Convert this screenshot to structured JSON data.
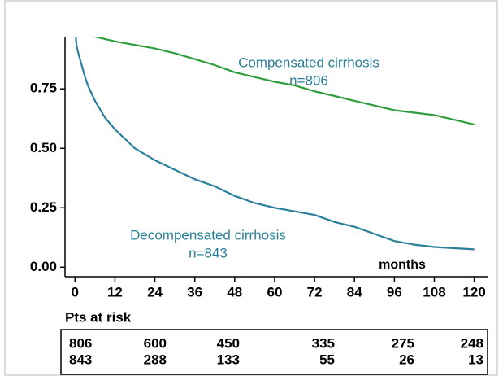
{
  "chart_data": {
    "type": "line",
    "x": [
      0,
      0.5,
      1,
      2,
      3,
      4,
      6,
      9,
      12,
      18,
      24,
      30,
      36,
      42,
      48,
      54,
      60,
      66,
      72,
      78,
      84,
      90,
      96,
      102,
      108,
      114,
      120
    ],
    "series": [
      {
        "name": "Compensated cirrhosis",
        "color": "#2e9e3e",
        "values": [
          1.0,
          0.995,
          0.99,
          0.985,
          0.98,
          0.975,
          0.97,
          0.96,
          0.95,
          0.935,
          0.92,
          0.9,
          0.875,
          0.85,
          0.82,
          0.8,
          0.78,
          0.765,
          0.74,
          0.72,
          0.7,
          0.68,
          0.66,
          0.65,
          0.64,
          0.62,
          0.6
        ]
      },
      {
        "name": "Decompensated cirrhosis",
        "color": "#2a7f9a",
        "values": [
          1.0,
          0.93,
          0.9,
          0.85,
          0.8,
          0.76,
          0.7,
          0.63,
          0.58,
          0.5,
          0.45,
          0.41,
          0.37,
          0.34,
          0.3,
          0.27,
          0.25,
          0.235,
          0.22,
          0.19,
          0.17,
          0.14,
          0.11,
          0.095,
          0.085,
          0.08,
          0.075
        ]
      }
    ],
    "annotations": {
      "compensated_n": "n=806",
      "decompensated_n": "n=843",
      "x_unit": "months"
    },
    "xlim": [
      -3,
      124
    ],
    "xticks": [
      0,
      12,
      24,
      36,
      48,
      60,
      72,
      84,
      96,
      108,
      120
    ],
    "ylim": [
      -0.04,
      0.97
    ],
    "yticks": [
      {
        "value": 0,
        "label": "0.00"
      },
      {
        "value": 0.25,
        "label": "0.25"
      },
      {
        "value": 0.5,
        "label": "0.50"
      },
      {
        "value": 0.75,
        "label": "0.75"
      }
    ],
    "risk_table": {
      "title": "Pts at risk",
      "rows": [
        [
          806,
          600,
          450,
          335,
          275,
          248
        ],
        [
          843,
          288,
          133,
          55,
          26,
          13
        ]
      ]
    }
  }
}
